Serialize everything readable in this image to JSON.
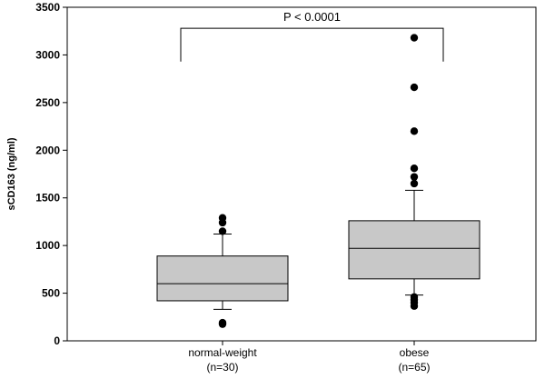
{
  "chart_data": {
    "type": "box",
    "ylabel": "sCD163 (ng/ml)",
    "ylim": [
      0,
      3500
    ],
    "yticks": [
      0,
      500,
      1000,
      1500,
      2000,
      2500,
      3000,
      3500
    ],
    "grid": false,
    "categories": [
      {
        "name": "normal-weight",
        "n_label": "(n=30)"
      },
      {
        "name": "obese",
        "n_label": "(n=65)"
      }
    ],
    "boxes": [
      {
        "category": "normal-weight",
        "q1": 420,
        "median": 600,
        "q3": 890,
        "whisker_low": 330,
        "whisker_high": 1120,
        "outliers": [
          175,
          190,
          1150,
          1240,
          1290
        ]
      },
      {
        "category": "obese",
        "q1": 650,
        "median": 970,
        "q3": 1260,
        "whisker_low": 480,
        "whisker_high": 1580,
        "outliers": [
          365,
          400,
          430,
          460,
          1650,
          1720,
          1810,
          2200,
          2660,
          3180
        ]
      }
    ],
    "annotations": [
      {
        "text": "P < 0.0001",
        "type": "bracket",
        "from": "normal-weight",
        "to": "obese",
        "y": 3280,
        "drop_to": 2930
      }
    ],
    "colors": {
      "box_fill": "#c8c8c8",
      "stroke": "#000000",
      "outlier": "#000000"
    }
  }
}
